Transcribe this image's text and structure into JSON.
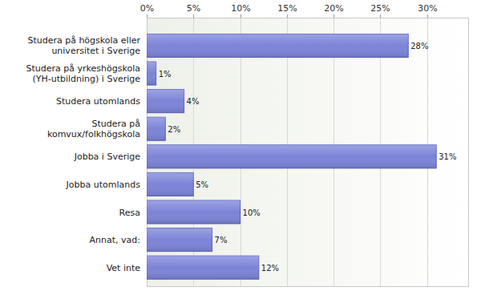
{
  "chart_data": {
    "type": "bar",
    "orientation": "horizontal",
    "categories": [
      "Studera på högskola eller universitet i Sverige",
      "Studera på yrkeshögskola (YH-utbildning) i Sverige",
      "Studera utomlands",
      "Studera på komvux/folkhögskola",
      "Jobba i Sverige",
      "Jobba utomlands",
      "Resa",
      "Annat, vad:",
      "Vet inte"
    ],
    "values": [
      28,
      1,
      4,
      2,
      31,
      5,
      10,
      7,
      12
    ],
    "value_labels": [
      "28%",
      "1%",
      "4%",
      "2%",
      "31%",
      "5%",
      "10%",
      "7%",
      "12%"
    ],
    "data_labels": true,
    "color": "#7c84d8",
    "xlim": [
      0,
      34.5
    ],
    "xticks": [
      {
        "value": 0,
        "label": "0%"
      },
      {
        "value": 5,
        "label": "5%"
      },
      {
        "value": 10,
        "label": "10%"
      },
      {
        "value": 15,
        "label": "15%"
      },
      {
        "value": 20,
        "label": "20%"
      },
      {
        "value": 25,
        "label": "25%"
      },
      {
        "value": 30,
        "label": "30%"
      }
    ],
    "grid": true
  }
}
